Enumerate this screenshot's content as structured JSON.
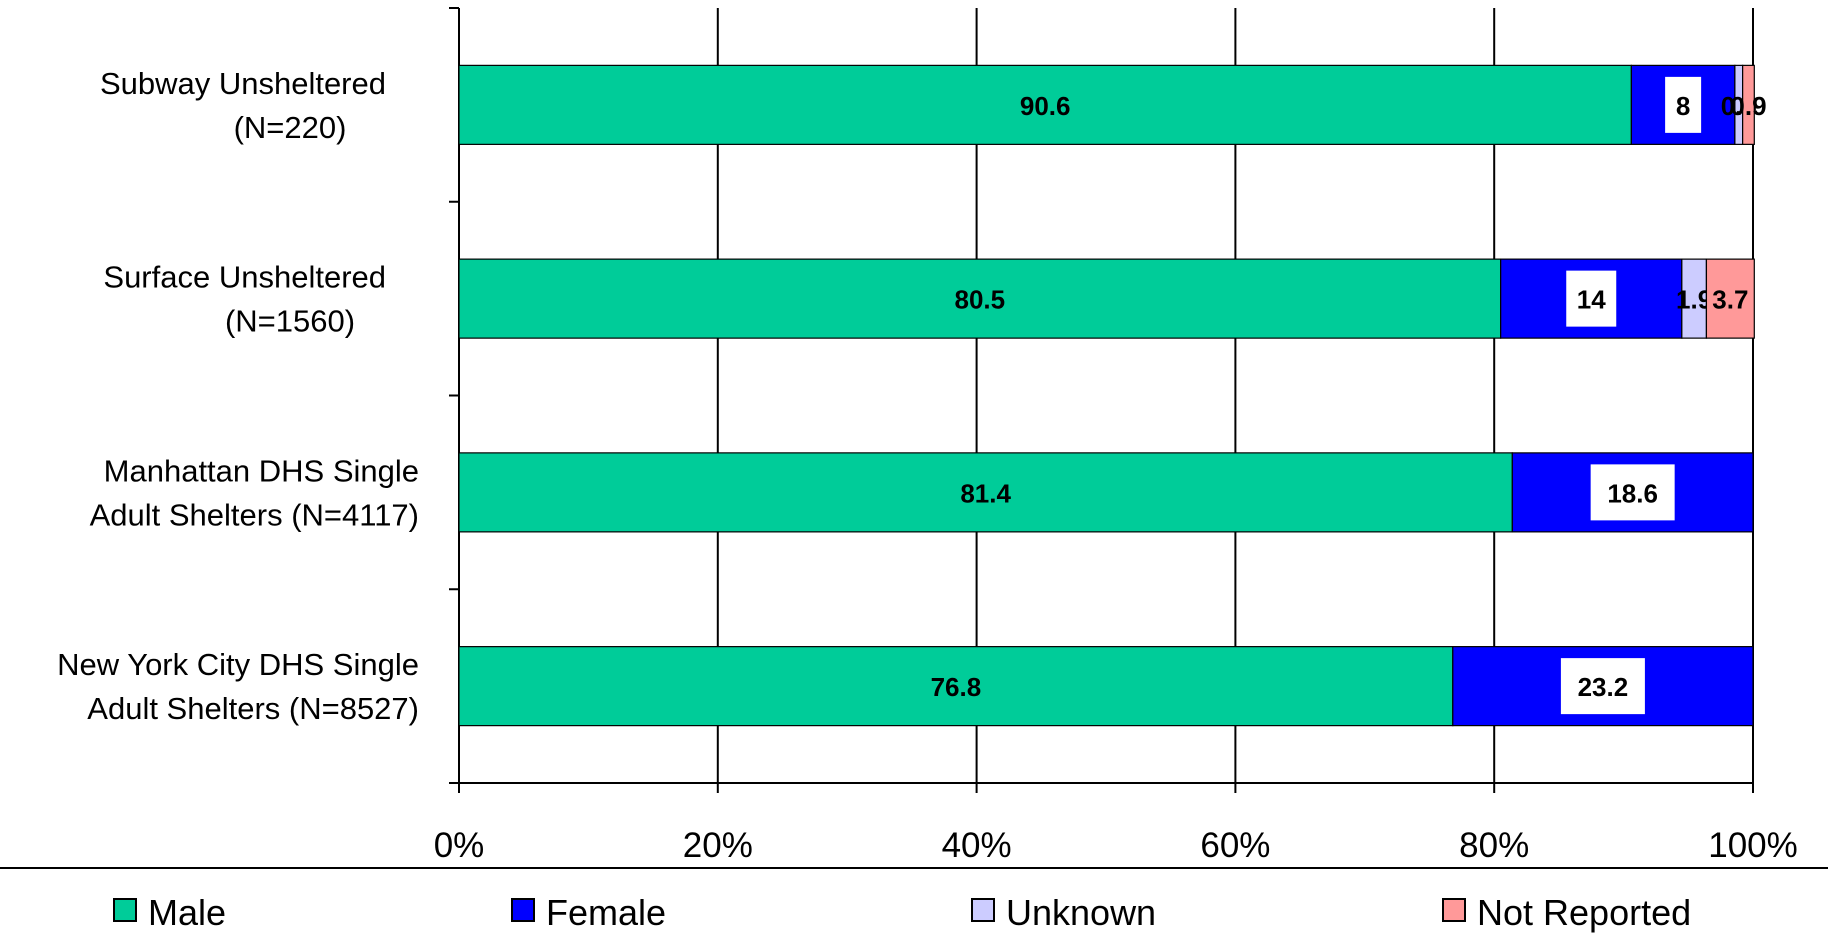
{
  "chart_data": {
    "type": "bar",
    "orientation": "horizontal",
    "stacked": "percent",
    "categories": [
      [
        "Subway Unsheltered",
        "(N=220)"
      ],
      [
        "Surface Unsheltered",
        "(N=1560)"
      ],
      [
        "Manhattan DHS Single",
        "Adult Shelters (N=4117)"
      ],
      [
        "New York City DHS Single",
        "Adult Shelters (N=8527)"
      ]
    ],
    "series": [
      {
        "name": "Male",
        "values": [
          90.6,
          80.5,
          81.4,
          76.8
        ],
        "labels": [
          "90.6",
          "80.5",
          "81.4",
          "76.8"
        ],
        "color": "#00CC99"
      },
      {
        "name": "Female",
        "values": [
          8,
          14,
          18.6,
          23.2
        ],
        "labels": [
          "8",
          "14",
          "18.6",
          "23.2"
        ],
        "color": "#0000FF"
      },
      {
        "name": "Unknown",
        "values": [
          0.6,
          1.9,
          0,
          0
        ],
        "labels": [
          "0.6",
          "1.9",
          "",
          ""
        ],
        "color": "#CCCCFF"
      },
      {
        "name": "Not Reported",
        "values": [
          0.9,
          3.7,
          0,
          0
        ],
        "labels": [
          "0.9",
          "3.7",
          "",
          ""
        ],
        "color": "#FF9999"
      }
    ],
    "x_ticks": [
      "0%",
      "20%",
      "40%",
      "60%",
      "80%",
      "100%"
    ],
    "xlim": [
      0,
      100
    ],
    "grid": true,
    "legend_position": "bottom"
  }
}
